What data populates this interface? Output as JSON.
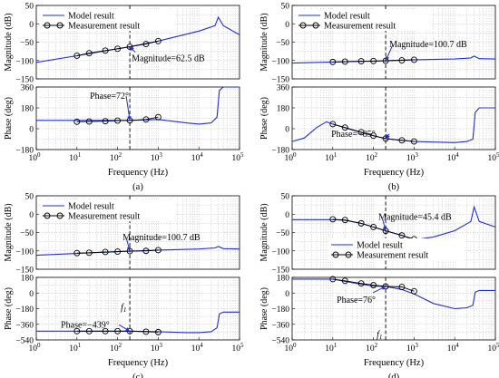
{
  "chart_data": [
    {
      "id": "a",
      "type": "line",
      "caption": "(a)",
      "xlabel": "Frequency  (Hz)",
      "xscale": "log",
      "xlim": [
        1,
        100000
      ],
      "xticks": [
        {
          "e": "0",
          "v": 1
        },
        {
          "e": "1",
          "v": 10
        },
        {
          "e": "2",
          "v": 100
        },
        {
          "e": "3",
          "v": 1000
        },
        {
          "e": "4",
          "v": 10000
        },
        {
          "e": "5",
          "v": 100000
        }
      ],
      "f1": 200,
      "legend": {
        "placement": "top",
        "items": [
          "Model result",
          "Measurement result"
        ]
      },
      "magnitude": {
        "ylabel": "Magnitude (dB)",
        "ylim": [
          -150,
          50
        ],
        "yticks": [
          50,
          0,
          -50,
          -100,
          -150
        ],
        "model": {
          "x": [
            1,
            10,
            100,
            200,
            1000,
            10000,
            25000,
            30000,
            40000,
            100000
          ],
          "y": [
            -105,
            -87,
            -68,
            -62.5,
            -47,
            -20,
            -5,
            18,
            -5,
            -30
          ]
        },
        "measurement": {
          "x": [
            10,
            20,
            50,
            100,
            200,
            500,
            1000
          ],
          "y": [
            -87,
            -80,
            -73,
            -68,
            -62.5,
            -55,
            -47
          ]
        },
        "annotation": {
          "text": "Magnitude=62.5 dB",
          "x": 200,
          "y": -62.5
        }
      },
      "phase": {
        "ylabel": "Phase (deg)",
        "ylim": [
          -180,
          360
        ],
        "yticks": [
          360,
          180,
          0,
          -180
        ],
        "model": {
          "x": [
            1,
            10,
            100,
            200,
            1000,
            5000,
            10000,
            20000,
            28000,
            32000,
            40000,
            100000
          ],
          "y": [
            72,
            72,
            72,
            72,
            80,
            50,
            40,
            50,
            100,
            330,
            360,
            360
          ]
        },
        "measurement": {
          "x": [
            10,
            20,
            50,
            100,
            200,
            500,
            1000
          ],
          "y": [
            60,
            62,
            65,
            70,
            72,
            80,
            100
          ]
        },
        "annotation": {
          "text": "Phase=72°",
          "x": 200,
          "y": 72
        }
      }
    },
    {
      "id": "b",
      "type": "line",
      "caption": "(b)",
      "xlabel": "Frequency  (Hz)",
      "xscale": "log",
      "xlim": [
        1,
        100000
      ],
      "xticks": [
        {
          "e": "0",
          "v": 1
        },
        {
          "e": "1",
          "v": 10
        },
        {
          "e": "2",
          "v": 100
        },
        {
          "e": "3",
          "v": 1000
        },
        {
          "e": "4",
          "v": 10000
        },
        {
          "e": "5",
          "v": 100000
        }
      ],
      "f1": 200,
      "legend": {
        "placement": "top",
        "items": [
          "Model result",
          "Measurement result"
        ]
      },
      "magnitude": {
        "ylabel": "Magnitude (dB)",
        "ylim": [
          -150,
          50
        ],
        "yticks": [
          50,
          0,
          -50,
          -100,
          -150
        ],
        "model": {
          "x": [
            1,
            10,
            100,
            200,
            1000,
            10000,
            25000,
            30000,
            40000,
            100000
          ],
          "y": [
            -107,
            -104,
            -101.5,
            -100.7,
            -98,
            -96,
            -93,
            -88,
            -95,
            -96
          ]
        },
        "measurement": {
          "x": [
            10,
            20,
            50,
            100,
            200,
            500,
            1000
          ],
          "y": [
            -104,
            -103,
            -102,
            -101.5,
            -100.7,
            -99.5,
            -98
          ]
        },
        "annotation": {
          "text": "Magnitude=100.7 dB",
          "x": 200,
          "y": -100.7
        }
      },
      "phase": {
        "ylabel": "Phase (deg)",
        "ylim": [
          -180,
          360
        ],
        "yticks": [
          360,
          180,
          0,
          -180
        ],
        "model": {
          "x": [
            1,
            2,
            4,
            7,
            10,
            30,
            100,
            200,
            500,
            1000,
            3000,
            10000,
            20000,
            28000,
            32000,
            40000,
            100000
          ],
          "y": [
            -110,
            -80,
            10,
            60,
            40,
            -10,
            -60,
            -85,
            -100,
            -110,
            -115,
            -120,
            -110,
            -90,
            140,
            180,
            180
          ]
        },
        "measurement": {
          "x": [
            10,
            20,
            50,
            100,
            200,
            500,
            1000
          ],
          "y": [
            40,
            10,
            -30,
            -60,
            -85,
            -100,
            -110
          ]
        },
        "annotation": {
          "text": "Phase=-85°",
          "x": 200,
          "y": -85
        }
      }
    },
    {
      "id": "c",
      "type": "line",
      "caption": "(c)",
      "xlabel": "Frequency  (Hz)",
      "xscale": "log",
      "xlim": [
        1,
        100000
      ],
      "xticks": [
        {
          "e": "0",
          "v": 1
        },
        {
          "e": "1",
          "v": 10
        },
        {
          "e": "2",
          "v": 100
        },
        {
          "e": "3",
          "v": 1000
        },
        {
          "e": "4",
          "v": 10000
        },
        {
          "e": "5",
          "v": 100000
        }
      ],
      "f1": 200,
      "f1_label": "f1",
      "legend": {
        "placement": "top",
        "items": [
          "Model result",
          "Measurement result"
        ]
      },
      "magnitude": {
        "ylabel": "Magnitude (dB)",
        "ylim": [
          -150,
          50
        ],
        "yticks": [
          50,
          0,
          -50,
          -100,
          -150
        ],
        "model": {
          "x": [
            1,
            10,
            100,
            200,
            1000,
            10000,
            25000,
            30000,
            40000,
            100000
          ],
          "y": [
            -112,
            -107,
            -102,
            -100.7,
            -98,
            -95,
            -92,
            -88,
            -94,
            -95
          ]
        },
        "measurement": {
          "x": [
            10,
            20,
            50,
            100,
            200,
            500,
            1000
          ],
          "y": [
            -106,
            -105,
            -103,
            -102,
            -100.7,
            -100,
            -98
          ]
        },
        "annotation": {
          "text": "Magnitude=100.7 dB",
          "x": 200,
          "y": -100.7
        }
      },
      "phase": {
        "ylabel": "Phase (deg)",
        "ylim": [
          -540,
          180
        ],
        "yticks": [
          180,
          0,
          -180,
          -360,
          -540
        ],
        "model": {
          "x": [
            1,
            10,
            100,
            200,
            1000,
            5000,
            10000,
            20000,
            28000,
            32000,
            40000,
            100000
          ],
          "y": [
            -439,
            -439,
            -439,
            -439,
            -445,
            -455,
            -455,
            -445,
            -400,
            -240,
            -220,
            -220
          ]
        },
        "measurement": {
          "x": [
            10,
            20,
            50,
            100,
            200,
            500,
            1000
          ],
          "y": [
            -439,
            -439,
            -439,
            -439,
            -439,
            -445,
            -450
          ]
        },
        "annotation": {
          "text": "Phase=-439°",
          "x": 200,
          "y": -439
        }
      }
    },
    {
      "id": "d",
      "type": "line",
      "caption": "(d)",
      "xlabel": "Frequency  (Hz)",
      "xscale": "log",
      "xlim": [
        1,
        100000
      ],
      "xticks": [
        {
          "e": "0",
          "v": 1
        },
        {
          "e": "1",
          "v": 10
        },
        {
          "e": "2",
          "v": 100
        },
        {
          "e": "3",
          "v": 1000
        },
        {
          "e": "4",
          "v": 10000
        },
        {
          "e": "5",
          "v": 100000
        }
      ],
      "f1": 200,
      "f1_label": "f1",
      "legend": {
        "placement": "bottom-right",
        "items": [
          "Model result",
          "Measurement result"
        ]
      },
      "magnitude": {
        "ylabel": "Magnitude (dB)",
        "ylim": [
          -150,
          50
        ],
        "yticks": [
          50,
          0,
          -50,
          -100,
          -150
        ],
        "model": {
          "x": [
            1,
            10,
            20,
            50,
            100,
            200,
            500,
            1000,
            3000,
            10000,
            25000,
            30000,
            40000,
            100000
          ],
          "y": [
            -15,
            -15,
            -17,
            -25,
            -35,
            -45.4,
            -58,
            -70,
            -62,
            -45,
            -20,
            20,
            -20,
            -35
          ]
        },
        "measurement": {
          "x": [
            10,
            20,
            50,
            100,
            200,
            500,
            1000
          ],
          "y": [
            -14,
            -16,
            -25,
            -35,
            -45.4,
            -58,
            -68
          ]
        },
        "annotation": {
          "text": "Magnitude=45.4 dB",
          "x": 200,
          "y": -45.4
        }
      },
      "phase": {
        "ylabel": "Phase (deg)",
        "ylim": [
          -540,
          180
        ],
        "yticks": [
          180,
          0,
          -180,
          -360,
          -540
        ],
        "model": {
          "x": [
            1,
            10,
            30,
            100,
            200,
            500,
            1000,
            3000,
            10000,
            20000,
            28000,
            32000,
            40000,
            100000
          ],
          "y": [
            160,
            160,
            120,
            80,
            76,
            40,
            -10,
            -120,
            -180,
            -170,
            -140,
            10,
            30,
            30
          ]
        },
        "measurement": {
          "x": [
            10,
            20,
            50,
            100,
            200,
            500,
            1000
          ],
          "y": [
            160,
            140,
            110,
            90,
            76,
            70,
            20
          ]
        },
        "annotation": {
          "text": "Phase=76°",
          "x": 200,
          "y": 76
        }
      }
    }
  ]
}
